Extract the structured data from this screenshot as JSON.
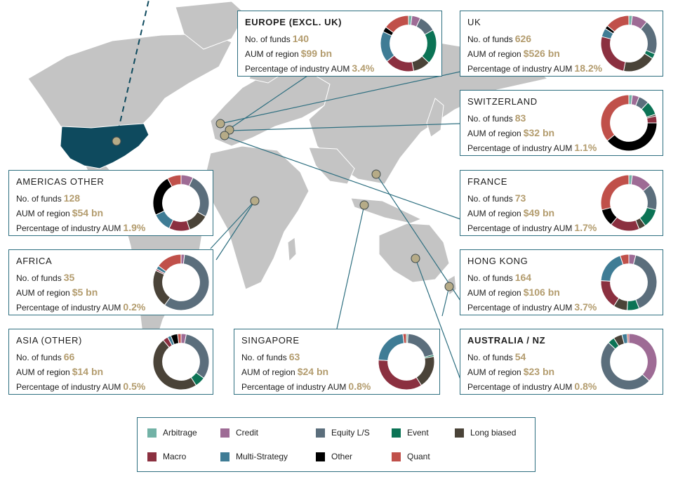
{
  "legend": [
    {
      "key": "arbitrage",
      "label": "Arbitrage",
      "color": "#72b2a6"
    },
    {
      "key": "credit",
      "label": "Credit",
      "color": "#9e6b95"
    },
    {
      "key": "equity",
      "label": "Equity L/S",
      "color": "#5b6e7c"
    },
    {
      "key": "event",
      "label": "Event",
      "color": "#0b7355"
    },
    {
      "key": "long",
      "label": "Long biased",
      "color": "#4a4338"
    },
    {
      "key": "macro",
      "label": "Macro",
      "color": "#8b3040"
    },
    {
      "key": "multi",
      "label": "Multi-Strategy",
      "color": "#3f7c95"
    },
    {
      "key": "other",
      "label": "Other",
      "color": "#000000"
    },
    {
      "key": "quant",
      "label": "Quant",
      "color": "#c0504a"
    }
  ],
  "labels": {
    "funds": "No. of funds",
    "aum": "AUM of region",
    "pct": "Percentage of industry AUM"
  },
  "chart_data": [
    {
      "type": "pie",
      "region": "EUROPE (EXCL. UK)",
      "funds": "140",
      "aum": "$99 bn",
      "pct": "3.4%",
      "strategy_shares": {
        "arbitrage": 2,
        "credit": 5,
        "equity": 10,
        "event": 20,
        "long": 10,
        "macro": 17,
        "multi": 18,
        "other": 3,
        "quant": 15
      }
    },
    {
      "type": "pie",
      "region": "UK",
      "funds": "626",
      "aum": "$526 bn",
      "pct": "18.2%",
      "strategy_shares": {
        "arbitrage": 2,
        "credit": 9,
        "equity": 20,
        "event": 3,
        "long": 19,
        "macro": 26,
        "multi": 5,
        "other": 2,
        "quant": 14
      }
    },
    {
      "type": "pie",
      "region": "SWITZERLAND",
      "funds": "83",
      "aum": "$32 bn",
      "pct": "1.1%",
      "strategy_shares": {
        "arbitrage": 2,
        "credit": 4,
        "equity": 6,
        "event": 8,
        "long": 1,
        "macro": 4,
        "multi": 0,
        "other": 39,
        "quant": 36
      }
    },
    {
      "type": "pie",
      "region": "FRANCE",
      "funds": "73",
      "aum": "$49 bn",
      "pct": "1.7%",
      "strategy_shares": {
        "arbitrage": 2,
        "credit": 12,
        "equity": 15,
        "event": 11,
        "long": 4,
        "macro": 17,
        "multi": 0,
        "other": 10,
        "quant": 29
      }
    },
    {
      "type": "pie",
      "region": "HONG KONG",
      "funds": "164",
      "aum": "$106 bn",
      "pct": "3.7%",
      "strategy_shares": {
        "arbitrage": 0,
        "credit": 4,
        "equity": 40,
        "event": 7,
        "long": 8,
        "macro": 17,
        "multi": 19,
        "other": 0,
        "quant": 5
      }
    },
    {
      "type": "pie",
      "region": "AUSTRALIA / NZ",
      "funds": "54",
      "aum": "$23 bn",
      "pct": "0.8%",
      "strategy_shares": {
        "arbitrage": 0,
        "credit": 37,
        "equity": 50,
        "event": 4,
        "long": 5,
        "macro": 0,
        "multi": 3,
        "other": 0,
        "quant": 1
      }
    },
    {
      "type": "pie",
      "region": "SINGAPORE",
      "funds": "63",
      "aum": "$24 bn",
      "pct": "0.8%",
      "strategy_shares": {
        "arbitrage": 1,
        "credit": 0,
        "equity": 20,
        "event": 1,
        "long": 19,
        "macro": 35,
        "multi": 22,
        "other": 0,
        "quant": 2
      }
    },
    {
      "type": "pie",
      "region": "ASIA (OTHER)",
      "funds": "66",
      "aum": "$14 bn",
      "pct": "0.5%",
      "strategy_shares": {
        "arbitrage": 0,
        "credit": 3,
        "equity": 32,
        "event": 6,
        "long": 48,
        "macro": 3,
        "multi": 2,
        "other": 4,
        "quant": 2
      }
    },
    {
      "type": "pie",
      "region": "AFRICA",
      "funds": "35",
      "aum": "$5 bn",
      "pct": "0.2%",
      "strategy_shares": {
        "arbitrage": 0,
        "credit": 2,
        "equity": 58,
        "event": 0,
        "long": 22,
        "macro": 1,
        "multi": 2,
        "other": 0,
        "quant": 15
      }
    },
    {
      "type": "pie",
      "region": "AMERICAS OTHER",
      "funds": "128",
      "aum": "$54 bn",
      "pct": "1.9%",
      "strategy_shares": {
        "arbitrage": 0,
        "credit": 7,
        "equity": 26,
        "event": 0,
        "long": 12,
        "macro": 12,
        "multi": 11,
        "other": 24,
        "quant": 8
      }
    }
  ]
}
